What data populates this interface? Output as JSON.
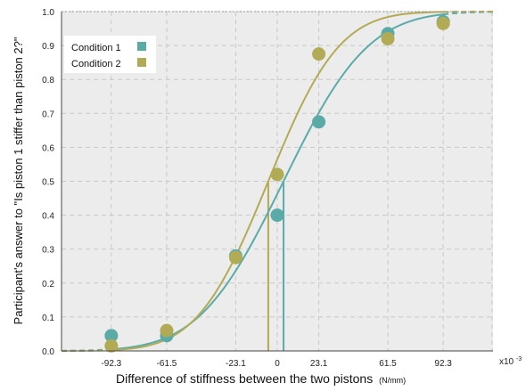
{
  "chart_data": {
    "type": "scatter",
    "xlabel": "Difference of stiffness between the two pistons",
    "xlabel_unit": "(N/mm)",
    "ylabel": "Participant's answer to \"Is piston 1 stiffer than piston 2?\"",
    "x_multiplier_label": "x10",
    "x_multiplier_exp": "-3",
    "xlim": [
      -0.12,
      0.12
    ],
    "ylim": [
      0,
      1
    ],
    "x_ticks": [
      -0.0923,
      -0.0615,
      -0.0231,
      0,
      0.0231,
      0.0615,
      0.0923
    ],
    "x_tick_labels": [
      "-92.3",
      "-61.5",
      "-23.1",
      "0",
      "23.1",
      "61.5",
      "92.3"
    ],
    "y_ticks": [
      0,
      0.1,
      0.2,
      0.3,
      0.4,
      0.5,
      0.6,
      0.7,
      0.8,
      0.9,
      1.0
    ],
    "y_tick_labels": [
      "0.0",
      "0.1",
      "0.2",
      "0.3",
      "0.4",
      "0.5",
      "0.6",
      "0.7",
      "0.8",
      "0.9",
      "1.0"
    ],
    "grid": true,
    "legend_position": "top-left",
    "series": [
      {
        "name": "Condition 1",
        "color": "#5aaba8",
        "x": [
          -0.0923,
          -0.0615,
          -0.0231,
          0,
          0.0231,
          0.0615,
          0.0923
        ],
        "y": [
          0.045,
          0.045,
          0.28,
          0.4,
          0.675,
          0.935,
          0.97
        ],
        "fit": {
          "mean": 0.0035,
          "sigma": 0.037
        },
        "threshold_x": 0.0035
      },
      {
        "name": "Condition 2",
        "color": "#b2ab55",
        "x": [
          -0.0923,
          -0.0615,
          -0.0231,
          0,
          0.0231,
          0.0615,
          0.0923
        ],
        "y": [
          0.015,
          0.06,
          0.275,
          0.52,
          0.875,
          0.92,
          0.965
        ],
        "fit": {
          "mean": -0.005,
          "sigma": 0.031
        },
        "threshold_x": -0.005
      }
    ]
  }
}
